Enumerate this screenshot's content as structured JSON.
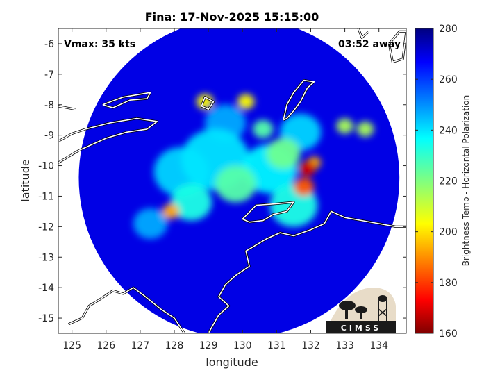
{
  "chart_data": {
    "type": "heatmap",
    "title": "Fina: 17-Nov-2025 15:15:00",
    "xlabel": "longitude",
    "ylabel": "latitude",
    "xlim": [
      124.6,
      134.8
    ],
    "ylim": [
      -15.5,
      -5.5
    ],
    "xticks": [
      125,
      126,
      127,
      128,
      129,
      130,
      131,
      132,
      133,
      134
    ],
    "yticks": [
      -6,
      -7,
      -8,
      -9,
      -10,
      -11,
      -12,
      -13,
      -14,
      -15
    ],
    "annotations": {
      "vmax": "Vmax: 35 kts",
      "time_away": "03:52 away"
    },
    "colorbar": {
      "label": "Brightness Temp - Horizontal Polarization",
      "min": 160,
      "max": 280,
      "ticks": [
        160,
        180,
        200,
        220,
        240,
        260,
        280
      ],
      "colormap": "jet"
    },
    "swath": {
      "center": [
        129.9,
        -10.4
      ],
      "radius_deg": 4.7,
      "background_value": 268
    },
    "features": [
      {
        "lon": 131.9,
        "lat": -10.1,
        "value": 170,
        "size": 0.25
      },
      {
        "lon": 131.8,
        "lat": -10.7,
        "value": 185,
        "size": 0.3
      },
      {
        "lon": 132.1,
        "lat": -9.9,
        "value": 195,
        "size": 0.2
      },
      {
        "lon": 127.9,
        "lat": -11.5,
        "value": 195,
        "size": 0.25
      },
      {
        "lon": 128.9,
        "lat": -7.9,
        "value": 205,
        "size": 0.25
      },
      {
        "lon": 130.1,
        "lat": -7.9,
        "value": 205,
        "size": 0.25
      },
      {
        "lon": 129.8,
        "lat": -10.6,
        "value": 225,
        "size": 0.6
      },
      {
        "lon": 131.2,
        "lat": -9.6,
        "value": 222,
        "size": 0.5
      },
      {
        "lon": 133.0,
        "lat": -8.7,
        "value": 215,
        "size": 0.25
      },
      {
        "lon": 133.6,
        "lat": -8.8,
        "value": 215,
        "size": 0.25
      },
      {
        "lon": 130.6,
        "lat": -8.8,
        "value": 225,
        "size": 0.3
      },
      {
        "lon": 129.2,
        "lat": -9.8,
        "value": 238,
        "size": 1.0
      },
      {
        "lon": 128.5,
        "lat": -11.2,
        "value": 232,
        "size": 0.6
      },
      {
        "lon": 131.5,
        "lat": -11.3,
        "value": 232,
        "size": 0.7
      },
      {
        "lon": 128.2,
        "lat": -10.2,
        "value": 240,
        "size": 0.8
      },
      {
        "lon": 130.8,
        "lat": -10.1,
        "value": 236,
        "size": 0.8
      },
      {
        "lon": 131.7,
        "lat": -8.9,
        "value": 240,
        "size": 0.6
      },
      {
        "lon": 127.3,
        "lat": -11.9,
        "value": 245,
        "size": 0.5
      },
      {
        "lon": 129.5,
        "lat": -8.6,
        "value": 245,
        "size": 0.6
      }
    ],
    "coastlines": [
      [
        [
          124.6,
          -9.9
        ],
        [
          125.2,
          -9.5
        ],
        [
          126.0,
          -9.1
        ],
        [
          126.6,
          -8.9
        ],
        [
          127.2,
          -8.8
        ],
        [
          127.5,
          -8.55
        ],
        [
          126.9,
          -8.45
        ],
        [
          126.1,
          -8.6
        ],
        [
          125.4,
          -8.8
        ],
        [
          125.0,
          -8.95
        ],
        [
          124.6,
          -9.2
        ]
      ],
      [
        [
          124.6,
          -8.05
        ],
        [
          125.1,
          -8.15
        ]
      ],
      [
        [
          125.9,
          -8.0
        ],
        [
          126.5,
          -7.75
        ],
        [
          127.3,
          -7.6
        ],
        [
          127.2,
          -7.8
        ],
        [
          126.7,
          -7.85
        ],
        [
          126.2,
          -8.1
        ],
        [
          125.9,
          -8.0
        ]
      ],
      [
        [
          128.8,
          -8.05
        ],
        [
          128.9,
          -7.75
        ],
        [
          129.15,
          -7.9
        ],
        [
          129.0,
          -8.15
        ],
        [
          128.8,
          -8.05
        ]
      ],
      [
        [
          131.2,
          -8.5
        ],
        [
          131.3,
          -8.0
        ],
        [
          131.5,
          -7.6
        ],
        [
          131.8,
          -7.2
        ],
        [
          132.1,
          -7.25
        ],
        [
          131.9,
          -7.45
        ],
        [
          131.7,
          -7.9
        ],
        [
          131.5,
          -8.2
        ],
        [
          131.3,
          -8.45
        ],
        [
          131.2,
          -8.5
        ]
      ],
      [
        [
          129.0,
          -15.5
        ],
        [
          129.3,
          -14.9
        ],
        [
          129.6,
          -14.6
        ],
        [
          129.3,
          -14.3
        ],
        [
          129.5,
          -13.9
        ],
        [
          129.8,
          -13.6
        ],
        [
          130.2,
          -13.3
        ],
        [
          130.1,
          -12.8
        ],
        [
          130.4,
          -12.6
        ],
        [
          130.7,
          -12.4
        ],
        [
          131.1,
          -12.2
        ],
        [
          131.5,
          -12.3
        ],
        [
          132.0,
          -12.1
        ],
        [
          132.4,
          -11.9
        ],
        [
          132.6,
          -11.5
        ],
        [
          133.0,
          -11.7
        ],
        [
          133.5,
          -11.8
        ],
        [
          134.0,
          -11.9
        ],
        [
          134.5,
          -12.0
        ],
        [
          134.8,
          -12.0
        ]
      ],
      [
        [
          130.0,
          -11.75
        ],
        [
          130.4,
          -11.3
        ],
        [
          131.0,
          -11.25
        ],
        [
          131.5,
          -11.2
        ],
        [
          131.3,
          -11.5
        ],
        [
          130.9,
          -11.6
        ],
        [
          130.6,
          -11.8
        ],
        [
          130.2,
          -11.85
        ],
        [
          130.0,
          -11.75
        ]
      ],
      [
        [
          128.3,
          -15.5
        ],
        [
          128.0,
          -15.0
        ],
        [
          127.6,
          -14.7
        ],
        [
          127.1,
          -14.25
        ],
        [
          126.8,
          -14.0
        ],
        [
          126.5,
          -14.2
        ],
        [
          126.2,
          -14.1
        ],
        [
          125.8,
          -14.4
        ],
        [
          125.5,
          -14.6
        ],
        [
          125.3,
          -15.0
        ],
        [
          124.9,
          -15.2
        ]
      ],
      [
        [
          133.4,
          -5.5
        ],
        [
          133.5,
          -5.8
        ],
        [
          133.7,
          -5.6
        ]
      ],
      [
        [
          134.3,
          -6.0
        ],
        [
          134.6,
          -5.6
        ],
        [
          134.8,
          -5.6
        ],
        [
          134.7,
          -6.5
        ],
        [
          134.4,
          -6.6
        ],
        [
          134.3,
          -6.0
        ]
      ]
    ]
  }
}
